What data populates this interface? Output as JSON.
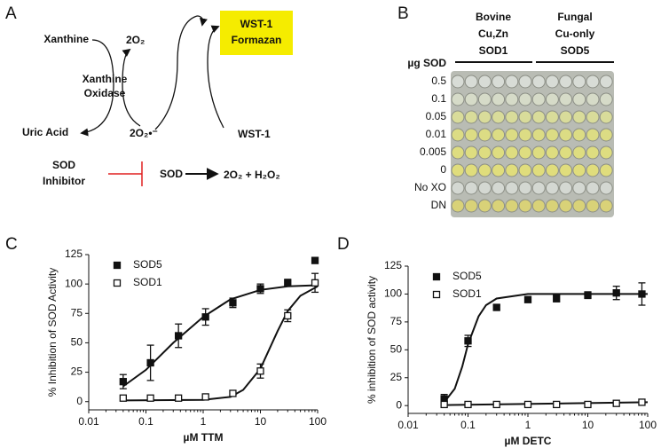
{
  "panel_labels": [
    "A",
    "B",
    "C",
    "D"
  ],
  "diagram": {
    "xanthine": "Xanthine",
    "o2_top": "2O₂",
    "formazan": [
      "WST-1",
      "Formazan"
    ],
    "oxidase": [
      "Xanthine",
      "Oxidase"
    ],
    "uric_acid": "Uric Acid",
    "superoxide": "2O₂•⁻",
    "wst1": "WST-1",
    "inhibitor": [
      "SOD",
      "Inhibitor"
    ],
    "sod": "SOD",
    "products": "2O₂ + H₂O₂"
  },
  "plate": {
    "headers": [
      [
        "Bovine",
        "Cu,Zn",
        "SOD1"
      ],
      [
        "Fungal",
        "Cu-only",
        "SOD5"
      ]
    ],
    "row_title": "µg SOD",
    "rows": [
      "0.5",
      "0.1",
      "0.05",
      "0.01",
      "0.005",
      "0",
      "No XO",
      "DN"
    ]
  },
  "chart_data": [
    {
      "type": "scatter",
      "xlabel": "µM TTM",
      "ylabel": "% Inhibition of SOD Activity",
      "xscale": "log",
      "xlim": [
        0.01,
        100
      ],
      "xticks": [
        0.01,
        0.1,
        1,
        10,
        100
      ],
      "ylim": [
        -7,
        125
      ],
      "yticks": [
        0,
        25,
        50,
        75,
        100,
        125
      ],
      "legend": "upper left",
      "series": [
        {
          "name": "SOD5",
          "color": "#111111",
          "marker": "filled-square",
          "x": [
            0.04,
            0.12,
            0.37,
            1.1,
            3.3,
            10,
            30,
            90
          ],
          "values": [
            17,
            33,
            56,
            72,
            84,
            96,
            101,
            120
          ],
          "errors": [
            6,
            15,
            10,
            7,
            4,
            4,
            3,
            0
          ],
          "fit": {
            "x": [
              0.04,
              0.1,
              0.3,
              1,
              3,
              10,
              30,
              100
            ],
            "values": [
              13,
              27,
              50,
              72,
              87,
              95,
              98,
              99
            ]
          }
        },
        {
          "name": "SOD1",
          "color": "#111111",
          "marker": "open-square",
          "x": [
            0.04,
            0.12,
            0.37,
            1.1,
            3.3,
            10,
            30,
            90
          ],
          "values": [
            3,
            3,
            3,
            4,
            7,
            26,
            73,
            101
          ],
          "errors": [
            0,
            0,
            0,
            0,
            0,
            6,
            5,
            8
          ],
          "fit": {
            "x": [
              0.04,
              1,
              3,
              5,
              10,
              20,
              30,
              50,
              100
            ],
            "values": [
              1,
              1.5,
              4,
              10,
              28,
              60,
              77,
              90,
              98
            ]
          }
        }
      ]
    },
    {
      "type": "scatter",
      "xlabel": "µM DETC",
      "ylabel": "% inhibition of SOD activity",
      "xscale": "log",
      "xlim": [
        0.01,
        100
      ],
      "xticks": [
        0.01,
        0.1,
        1,
        10,
        100
      ],
      "ylim": [
        -7,
        125
      ],
      "yticks": [
        0,
        25,
        50,
        75,
        100,
        125
      ],
      "legend": "upper left",
      "series": [
        {
          "name": "SOD5",
          "color": "#111111",
          "marker": "filled-square",
          "x": [
            0.04,
            0.1,
            0.3,
            1,
            3,
            10,
            30,
            80
          ],
          "values": [
            6,
            58,
            88,
            95,
            96,
            99,
            101,
            100
          ],
          "errors": [
            4,
            5,
            2,
            2,
            3,
            3,
            6,
            10
          ],
          "fit": {
            "x": [
              0.04,
              0.06,
              0.08,
              0.1,
              0.15,
              0.2,
              0.3,
              1,
              100
            ],
            "values": [
              3,
              15,
              35,
              55,
              80,
              90,
              96,
              100,
              100
            ]
          }
        },
        {
          "name": "SOD1",
          "color": "#111111",
          "marker": "open-square",
          "x": [
            0.04,
            0.1,
            0.3,
            1,
            3,
            10,
            30,
            80
          ],
          "values": [
            1,
            1,
            1,
            1,
            1,
            1,
            2,
            3
          ],
          "errors": [
            0,
            0,
            0,
            0,
            0,
            0,
            0,
            1
          ],
          "fit": {
            "x": [
              0.04,
              100
            ],
            "values": [
              0.5,
              3
            ]
          }
        }
      ]
    }
  ]
}
